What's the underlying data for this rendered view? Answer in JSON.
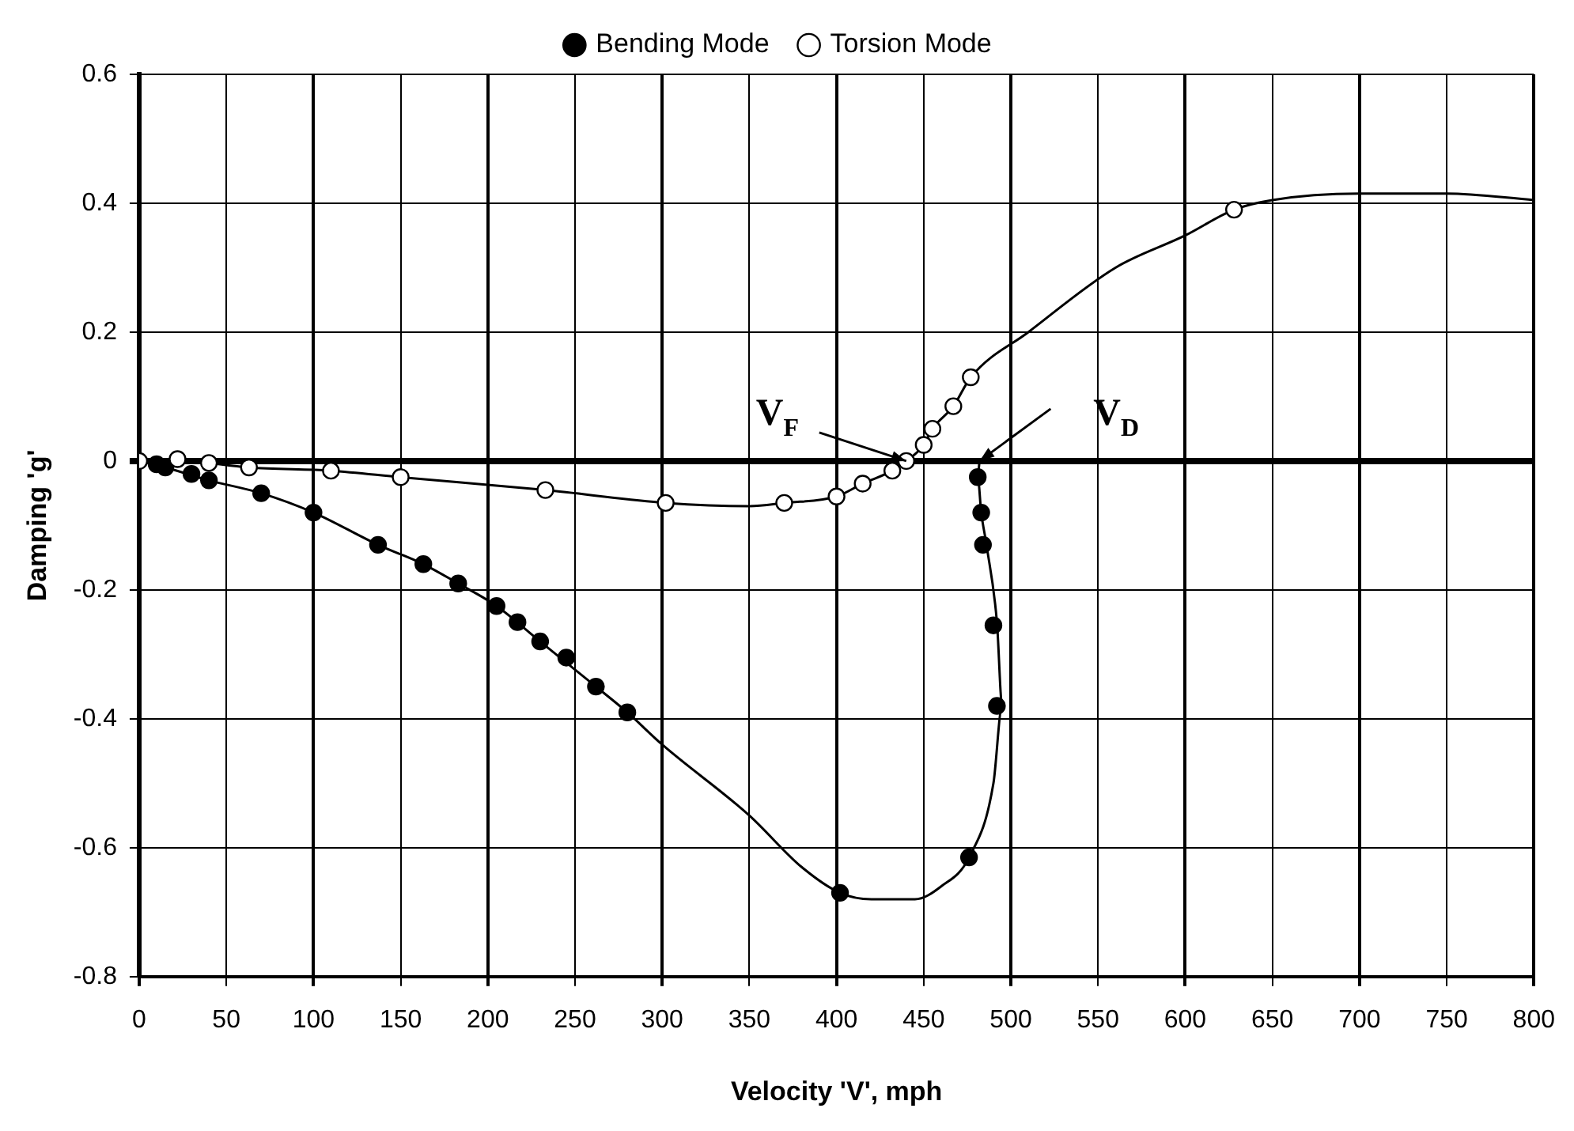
{
  "chart_data": {
    "type": "scatter",
    "xlabel": "Velocity 'V', mph",
    "ylabel": "Damping 'g'",
    "xlim": [
      0,
      800
    ],
    "xticks": [
      0,
      50,
      100,
      150,
      200,
      250,
      300,
      350,
      400,
      450,
      500,
      550,
      600,
      650,
      700,
      750,
      800
    ],
    "ylim": [
      -0.8,
      0.6
    ],
    "yticks": [
      -0.8,
      -0.6,
      -0.4,
      -0.2,
      0,
      0.2,
      0.4,
      0.6
    ],
    "grid": true,
    "legend": "top",
    "marker": "circle",
    "series": [
      {
        "name": "Bending Mode",
        "color": "#000000",
        "x": [
          10,
          15,
          30,
          40,
          70,
          100,
          137,
          163,
          183,
          205,
          217,
          230,
          245,
          262,
          280,
          402,
          476,
          492,
          490,
          484,
          483,
          481
        ],
        "values": [
          -0.005,
          -0.01,
          -0.02,
          -0.03,
          -0.05,
          -0.08,
          -0.13,
          -0.16,
          -0.19,
          -0.225,
          -0.25,
          -0.28,
          -0.305,
          -0.35,
          -0.39,
          -0.67,
          -0.615,
          -0.38,
          -0.255,
          -0.13,
          -0.08,
          -0.025
        ]
      },
      {
        "name": "Torsion Mode",
        "color": "#ffffff",
        "x": [
          0,
          22,
          40,
          63,
          110,
          150,
          233,
          302,
          370,
          400,
          415,
          432,
          440,
          450,
          455,
          467,
          477,
          628
        ],
        "values": [
          0,
          0.003,
          -0.003,
          -0.01,
          -0.015,
          -0.025,
          -0.045,
          -0.065,
          -0.065,
          -0.055,
          -0.035,
          -0.015,
          0,
          0.025,
          0.05,
          0.085,
          0.13,
          0.39
        ]
      },
      {
        "type": "line",
        "marker": "none",
        "color": "#000000",
        "x": [
          0,
          15,
          40,
          70,
          100,
          137,
          163,
          183,
          205,
          230,
          262,
          280,
          300,
          350,
          380,
          402,
          420,
          445,
          460,
          476,
          490,
          495,
          492,
          486,
          483,
          481,
          482
        ],
        "values": [
          0,
          -0.01,
          -0.03,
          -0.05,
          -0.08,
          -0.13,
          -0.16,
          -0.19,
          -0.225,
          -0.28,
          -0.35,
          -0.39,
          -0.44,
          -0.55,
          -0.63,
          -0.67,
          -0.68,
          -0.68,
          -0.66,
          -0.615,
          -0.5,
          -0.38,
          -0.25,
          -0.13,
          -0.08,
          -0.025,
          0
        ]
      },
      {
        "type": "line",
        "marker": "none",
        "color": "#000000",
        "x": [
          0,
          22,
          40,
          63,
          110,
          150,
          233,
          302,
          350,
          370,
          400,
          415,
          432,
          440,
          450,
          455,
          467,
          477,
          510,
          560,
          600,
          628,
          650,
          700,
          750,
          800
        ],
        "values": [
          0,
          0.003,
          -0.003,
          -0.01,
          -0.015,
          -0.025,
          -0.045,
          -0.065,
          -0.07,
          -0.065,
          -0.055,
          -0.035,
          -0.015,
          0,
          0.025,
          0.05,
          0.085,
          0.13,
          0.2,
          0.3,
          0.35,
          0.39,
          0.405,
          0.415,
          0.415,
          0.405
        ]
      }
    ],
    "annotations": [
      {
        "text": "V$_{F}$",
        "x": 440,
        "y": 0
      },
      {
        "text": "V$_{D}$",
        "x": 482,
        "y": 0
      }
    ]
  }
}
